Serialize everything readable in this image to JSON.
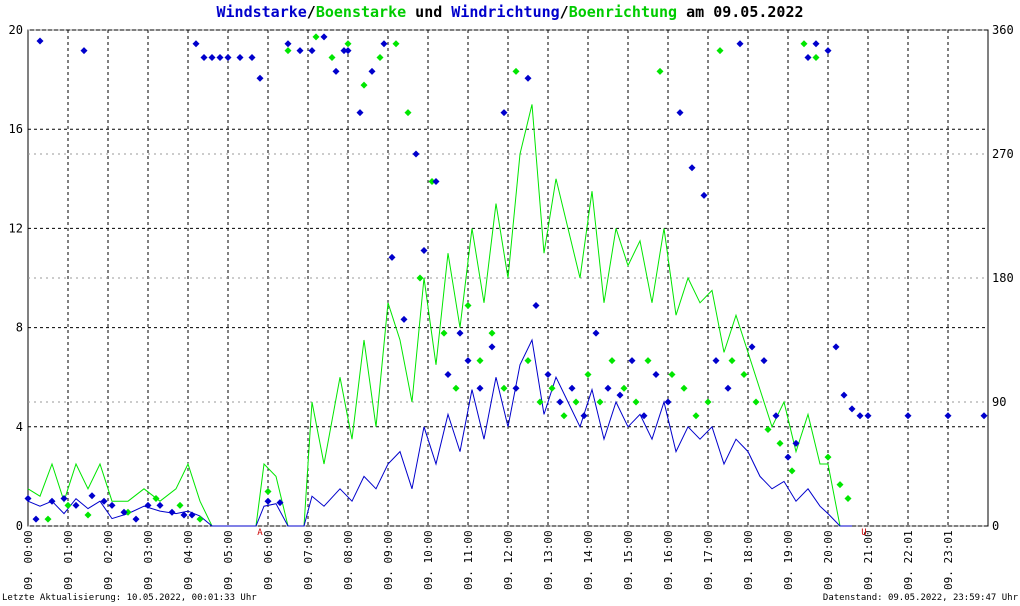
{
  "title": {
    "part1": "Windstarke",
    "sep1": "/",
    "part2": "Boenstarke",
    "mid": " und ",
    "part3": "Windrichtung",
    "sep2": "/",
    "part4": "Boenrichtung",
    "tail": " am 09.05.2022"
  },
  "footer": {
    "left": "Letzte Aktualisierung: 10.05.2022, 00:01:33 Uhr",
    "right": "Datenstand: 09.05.2022, 23:59:47 Uhr"
  },
  "colors": {
    "wind": "#0000cc",
    "gust": "#00e600",
    "marker": "#cc0000",
    "grid": "#000000"
  },
  "chart_data": {
    "type": "line",
    "ylim_left": [
      0,
      20
    ],
    "ylim_right": [
      0,
      360
    ],
    "left_ticks": [
      "0",
      "4",
      "8",
      "12",
      "16",
      "20"
    ],
    "right_ticks": [
      "0",
      "90",
      "180",
      "270",
      "360"
    ],
    "x_range_hours": [
      0,
      24
    ],
    "x_ticks": [
      {
        "h": 0,
        "label": "09. 00:00"
      },
      {
        "h": 1,
        "label": "09. 01:00"
      },
      {
        "h": 2,
        "label": "09. 02:00"
      },
      {
        "h": 3,
        "label": "09. 03:00"
      },
      {
        "h": 4,
        "label": "09. 04:00"
      },
      {
        "h": 5,
        "label": "09. 05:00"
      },
      {
        "h": 6,
        "label": "09. 06:00"
      },
      {
        "h": 7,
        "label": "09. 07:00"
      },
      {
        "h": 8,
        "label": "09. 08:00"
      },
      {
        "h": 9,
        "label": "09. 09:00"
      },
      {
        "h": 10,
        "label": "09. 10:00"
      },
      {
        "h": 11,
        "label": "09. 11:00"
      },
      {
        "h": 12,
        "label": "09. 12:00"
      },
      {
        "h": 13,
        "label": "09. 13:00"
      },
      {
        "h": 14,
        "label": "09. 14:00"
      },
      {
        "h": 15,
        "label": "09. 15:00"
      },
      {
        "h": 16,
        "label": "09. 16:00"
      },
      {
        "h": 17,
        "label": "09. 17:00"
      },
      {
        "h": 18,
        "label": "09. 18:00"
      },
      {
        "h": 19,
        "label": "09. 19:00"
      },
      {
        "h": 20,
        "label": "09. 20:00"
      },
      {
        "h": 21,
        "label": "09. 21:00"
      },
      {
        "h": 22,
        "label": "09. 22:01"
      },
      {
        "h": 23,
        "label": "09. 23:01"
      }
    ],
    "markers": [
      {
        "h": 5.8,
        "label": "A"
      },
      {
        "h": 20.9,
        "label": "U"
      }
    ],
    "series": [
      {
        "name": "Windstarke",
        "axis": "left",
        "points": [
          [
            0.0,
            1.0
          ],
          [
            0.3,
            0.8
          ],
          [
            0.6,
            1.0
          ],
          [
            0.9,
            0.5
          ],
          [
            1.2,
            1.1
          ],
          [
            1.5,
            0.7
          ],
          [
            1.8,
            1.0
          ],
          [
            2.1,
            0.3
          ],
          [
            2.5,
            0.5
          ],
          [
            2.9,
            0.8
          ],
          [
            3.3,
            0.6
          ],
          [
            3.7,
            0.5
          ],
          [
            4.0,
            0.6
          ],
          [
            4.3,
            0.4
          ],
          [
            4.6,
            0.0
          ],
          [
            5.7,
            0.0
          ],
          [
            5.9,
            0.8
          ],
          [
            6.2,
            0.9
          ],
          [
            6.5,
            0.0
          ],
          [
            6.9,
            0.0
          ],
          [
            7.1,
            1.2
          ],
          [
            7.4,
            0.8
          ],
          [
            7.8,
            1.5
          ],
          [
            8.1,
            1.0
          ],
          [
            8.4,
            2.0
          ],
          [
            8.7,
            1.5
          ],
          [
            9.0,
            2.5
          ],
          [
            9.3,
            3.0
          ],
          [
            9.6,
            1.5
          ],
          [
            9.9,
            4.0
          ],
          [
            10.2,
            2.5
          ],
          [
            10.5,
            4.5
          ],
          [
            10.8,
            3.0
          ],
          [
            11.1,
            5.5
          ],
          [
            11.4,
            3.5
          ],
          [
            11.7,
            6.0
          ],
          [
            12.0,
            4.0
          ],
          [
            12.3,
            6.5
          ],
          [
            12.6,
            7.5
          ],
          [
            12.9,
            4.5
          ],
          [
            13.2,
            6.0
          ],
          [
            13.5,
            5.0
          ],
          [
            13.8,
            4.0
          ],
          [
            14.1,
            5.5
          ],
          [
            14.4,
            3.5
          ],
          [
            14.7,
            5.0
          ],
          [
            15.0,
            4.0
          ],
          [
            15.3,
            4.5
          ],
          [
            15.6,
            3.5
          ],
          [
            15.9,
            5.0
          ],
          [
            16.2,
            3.0
          ],
          [
            16.5,
            4.0
          ],
          [
            16.8,
            3.5
          ],
          [
            17.1,
            4.0
          ],
          [
            17.4,
            2.5
          ],
          [
            17.7,
            3.5
          ],
          [
            18.0,
            3.0
          ],
          [
            18.3,
            2.0
          ],
          [
            18.6,
            1.5
          ],
          [
            18.9,
            1.8
          ],
          [
            19.2,
            1.0
          ],
          [
            19.5,
            1.5
          ],
          [
            19.8,
            0.8
          ],
          [
            20.0,
            0.5
          ],
          [
            20.3,
            0.0
          ],
          [
            20.6,
            0.0
          ]
        ]
      },
      {
        "name": "Boenstarke",
        "axis": "left",
        "points": [
          [
            0.0,
            1.5
          ],
          [
            0.3,
            1.2
          ],
          [
            0.6,
            2.5
          ],
          [
            0.9,
            1.0
          ],
          [
            1.2,
            2.5
          ],
          [
            1.5,
            1.5
          ],
          [
            1.8,
            2.5
          ],
          [
            2.1,
            1.0
          ],
          [
            2.5,
            1.0
          ],
          [
            2.9,
            1.5
          ],
          [
            3.3,
            1.0
          ],
          [
            3.7,
            1.5
          ],
          [
            4.0,
            2.5
          ],
          [
            4.3,
            1.0
          ],
          [
            4.6,
            0.0
          ],
          [
            5.7,
            0.0
          ],
          [
            5.9,
            2.5
          ],
          [
            6.2,
            2.0
          ],
          [
            6.5,
            0.0
          ],
          [
            6.9,
            0.0
          ],
          [
            7.1,
            5.0
          ],
          [
            7.4,
            2.5
          ],
          [
            7.8,
            6.0
          ],
          [
            8.1,
            3.5
          ],
          [
            8.4,
            7.5
          ],
          [
            8.7,
            4.0
          ],
          [
            9.0,
            9.0
          ],
          [
            9.3,
            7.5
          ],
          [
            9.6,
            5.0
          ],
          [
            9.9,
            10.0
          ],
          [
            10.2,
            6.5
          ],
          [
            10.5,
            11.0
          ],
          [
            10.8,
            8.0
          ],
          [
            11.1,
            12.0
          ],
          [
            11.4,
            9.0
          ],
          [
            11.7,
            13.0
          ],
          [
            12.0,
            10.0
          ],
          [
            12.3,
            15.0
          ],
          [
            12.6,
            17.0
          ],
          [
            12.9,
            11.0
          ],
          [
            13.2,
            14.0
          ],
          [
            13.5,
            12.0
          ],
          [
            13.8,
            10.0
          ],
          [
            14.1,
            13.5
          ],
          [
            14.4,
            9.0
          ],
          [
            14.7,
            12.0
          ],
          [
            15.0,
            10.5
          ],
          [
            15.3,
            11.5
          ],
          [
            15.6,
            9.0
          ],
          [
            15.9,
            12.0
          ],
          [
            16.2,
            8.5
          ],
          [
            16.5,
            10.0
          ],
          [
            16.8,
            9.0
          ],
          [
            17.1,
            9.5
          ],
          [
            17.4,
            7.0
          ],
          [
            17.7,
            8.5
          ],
          [
            18.0,
            7.0
          ],
          [
            18.3,
            5.5
          ],
          [
            18.6,
            4.0
          ],
          [
            18.9,
            5.0
          ],
          [
            19.2,
            3.0
          ],
          [
            19.5,
            4.5
          ],
          [
            19.8,
            2.5
          ],
          [
            20.0,
            2.5
          ],
          [
            20.3,
            0.0
          ],
          [
            20.6,
            0.0
          ]
        ]
      },
      {
        "name": "Windrichtung",
        "axis": "right",
        "points": [
          [
            0.0,
            20
          ],
          [
            0.2,
            5
          ],
          [
            0.3,
            352
          ],
          [
            0.6,
            18
          ],
          [
            0.9,
            20
          ],
          [
            1.2,
            15
          ],
          [
            1.4,
            345
          ],
          [
            1.6,
            22
          ],
          [
            1.9,
            18
          ],
          [
            2.1,
            15
          ],
          [
            2.4,
            10
          ],
          [
            2.7,
            5
          ],
          [
            3.0,
            15
          ],
          [
            3.3,
            15
          ],
          [
            3.6,
            10
          ],
          [
            3.9,
            8
          ],
          [
            4.1,
            8
          ],
          [
            4.2,
            350
          ],
          [
            4.4,
            340
          ],
          [
            4.6,
            340
          ],
          [
            4.8,
            340
          ],
          [
            5.0,
            340
          ],
          [
            5.3,
            340
          ],
          [
            5.6,
            340
          ],
          [
            5.8,
            325
          ],
          [
            6.0,
            18
          ],
          [
            6.3,
            17
          ],
          [
            6.5,
            350
          ],
          [
            6.8,
            345
          ],
          [
            7.1,
            345
          ],
          [
            7.4,
            355
          ],
          [
            7.7,
            330
          ],
          [
            7.9,
            345
          ],
          [
            8.0,
            345
          ],
          [
            8.3,
            300
          ],
          [
            8.6,
            330
          ],
          [
            8.9,
            350
          ],
          [
            9.1,
            195
          ],
          [
            9.4,
            150
          ],
          [
            9.7,
            270
          ],
          [
            9.9,
            200
          ],
          [
            10.2,
            250
          ],
          [
            10.5,
            110
          ],
          [
            10.8,
            140
          ],
          [
            11.0,
            120
          ],
          [
            11.3,
            100
          ],
          [
            11.6,
            130
          ],
          [
            11.9,
            300
          ],
          [
            12.2,
            100
          ],
          [
            12.5,
            325
          ],
          [
            12.7,
            160
          ],
          [
            13.0,
            110
          ],
          [
            13.3,
            90
          ],
          [
            13.6,
            100
          ],
          [
            13.9,
            80
          ],
          [
            14.2,
            140
          ],
          [
            14.5,
            100
          ],
          [
            14.8,
            95
          ],
          [
            15.1,
            120
          ],
          [
            15.4,
            80
          ],
          [
            15.7,
            110
          ],
          [
            16.0,
            90
          ],
          [
            16.3,
            300
          ],
          [
            16.6,
            260
          ],
          [
            16.9,
            240
          ],
          [
            17.2,
            120
          ],
          [
            17.5,
            100
          ],
          [
            17.8,
            350
          ],
          [
            18.1,
            130
          ],
          [
            18.4,
            120
          ],
          [
            18.7,
            80
          ],
          [
            19.0,
            50
          ],
          [
            19.2,
            60
          ],
          [
            19.5,
            340
          ],
          [
            19.7,
            350
          ],
          [
            20.0,
            345
          ],
          [
            20.2,
            130
          ],
          [
            20.4,
            95
          ],
          [
            20.6,
            85
          ],
          [
            20.8,
            80
          ],
          [
            21.0,
            80
          ],
          [
            22.0,
            80
          ],
          [
            23.0,
            80
          ],
          [
            23.9,
            80
          ]
        ]
      },
      {
        "name": "Boenrichtung",
        "axis": "right",
        "points": [
          [
            0.5,
            5
          ],
          [
            1.0,
            15
          ],
          [
            1.5,
            8
          ],
          [
            2.5,
            10
          ],
          [
            3.2,
            20
          ],
          [
            3.8,
            15
          ],
          [
            4.3,
            5
          ],
          [
            6.0,
            25
          ],
          [
            6.5,
            345
          ],
          [
            7.2,
            355
          ],
          [
            7.6,
            340
          ],
          [
            8.0,
            350
          ],
          [
            8.4,
            320
          ],
          [
            8.8,
            340
          ],
          [
            9.2,
            350
          ],
          [
            9.5,
            300
          ],
          [
            9.8,
            180
          ],
          [
            10.1,
            250
          ],
          [
            10.4,
            140
          ],
          [
            10.7,
            100
          ],
          [
            11.0,
            160
          ],
          [
            11.3,
            120
          ],
          [
            11.6,
            140
          ],
          [
            11.9,
            100
          ],
          [
            12.2,
            330
          ],
          [
            12.5,
            120
          ],
          [
            12.8,
            90
          ],
          [
            13.1,
            100
          ],
          [
            13.4,
            80
          ],
          [
            13.7,
            90
          ],
          [
            14.0,
            110
          ],
          [
            14.3,
            90
          ],
          [
            14.6,
            120
          ],
          [
            14.9,
            100
          ],
          [
            15.2,
            90
          ],
          [
            15.5,
            120
          ],
          [
            15.8,
            330
          ],
          [
            16.1,
            110
          ],
          [
            16.4,
            100
          ],
          [
            16.7,
            80
          ],
          [
            17.0,
            90
          ],
          [
            17.3,
            345
          ],
          [
            17.6,
            120
          ],
          [
            17.9,
            110
          ],
          [
            18.2,
            90
          ],
          [
            18.5,
            70
          ],
          [
            18.8,
            60
          ],
          [
            19.1,
            40
          ],
          [
            19.4,
            350
          ],
          [
            19.7,
            340
          ],
          [
            20.0,
            50
          ],
          [
            20.3,
            30
          ],
          [
            20.5,
            20
          ]
        ]
      }
    ]
  }
}
